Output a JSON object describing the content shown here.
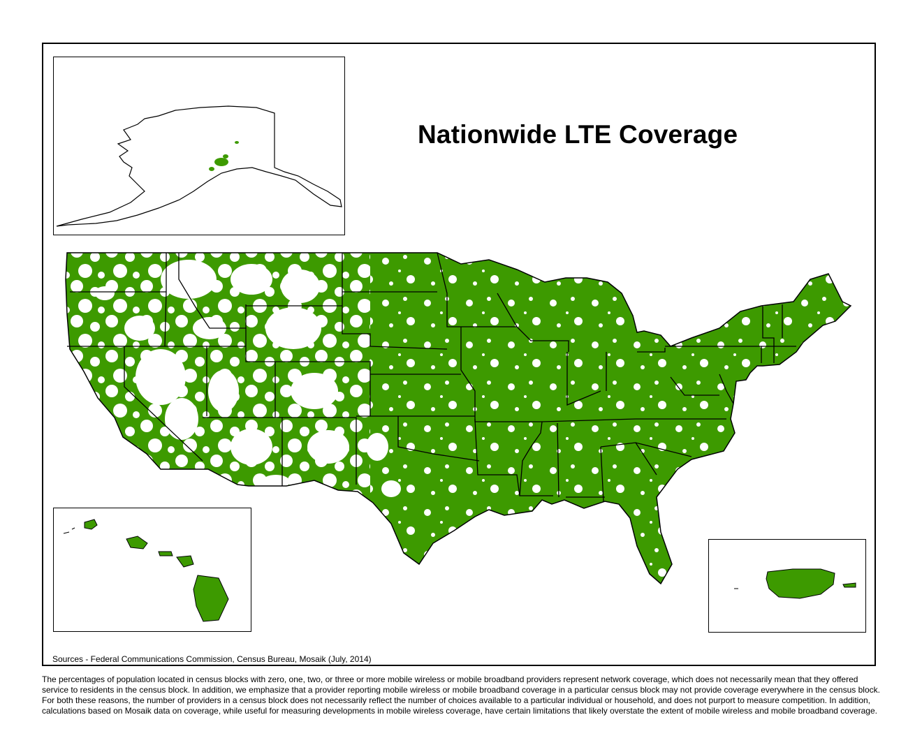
{
  "title": "Nationwide LTE Coverage",
  "sources": "Sources - Federal Communications Commission, Census Bureau, Mosaik (July, 2014)",
  "disclaimer": "The percentages of population located in census blocks with zero, one, two, or three or more mobile wireless or mobile broadband providers represent network coverage, which does not necessarily mean that they offered service to residents in the census block. In addition, we emphasize that a provider reporting mobile wireless or mobile broadband coverage in a particular census block may not provide coverage everywhere in the census block. For both these reasons, the number of providers in a census block does not necessarily reflect the number of choices available to a particular individual or household, and does not purport to measure competition. In addition, calculations based on Mosaik data on coverage, while useful for measuring developments in mobile wireless coverage, have certain limitations that likely overstate the extent of mobile wireless and mobile broadband coverage.",
  "colors": {
    "coverage": "#3d9a00",
    "no_coverage": "#ffffff",
    "border": "#000000"
  }
}
